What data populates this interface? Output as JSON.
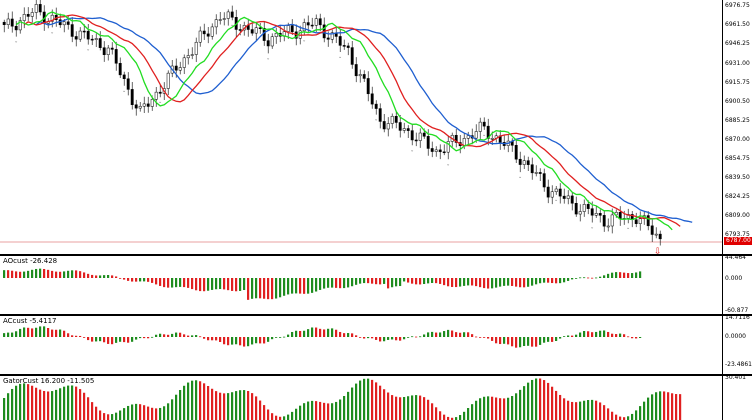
{
  "main": {
    "price_axis_ticks": [
      "6976.75",
      "6961.50",
      "6946.25",
      "6931.00",
      "6915.75",
      "6900.50",
      "6885.25",
      "6870.00",
      "6854.75",
      "6839.50",
      "6824.25",
      "6809.00",
      "6793.75"
    ],
    "current_price_label": "6787.00",
    "line_colors": {
      "slow": "#1f5fd0",
      "medium": "#e02020",
      "fast": "#22dd22"
    }
  },
  "panes": [
    {
      "label": "AOcust -26.428",
      "ticks": [
        "44.464",
        "0.000",
        "-60.877"
      ],
      "colors": {
        "up": "#1e8c1e",
        "down": "#e02020"
      }
    },
    {
      "label": "ACcust -5.4117",
      "ticks": [
        "14.7116",
        "0.0000",
        "-23.4861"
      ],
      "colors": {
        "up": "#1e8c1e",
        "down": "#e02020"
      }
    },
    {
      "label": "GatorCust 16.200 -11.505",
      "ticks": [
        "30.401"
      ],
      "colors": {
        "up": "#1e8c1e",
        "down": "#e02020"
      }
    }
  ]
}
